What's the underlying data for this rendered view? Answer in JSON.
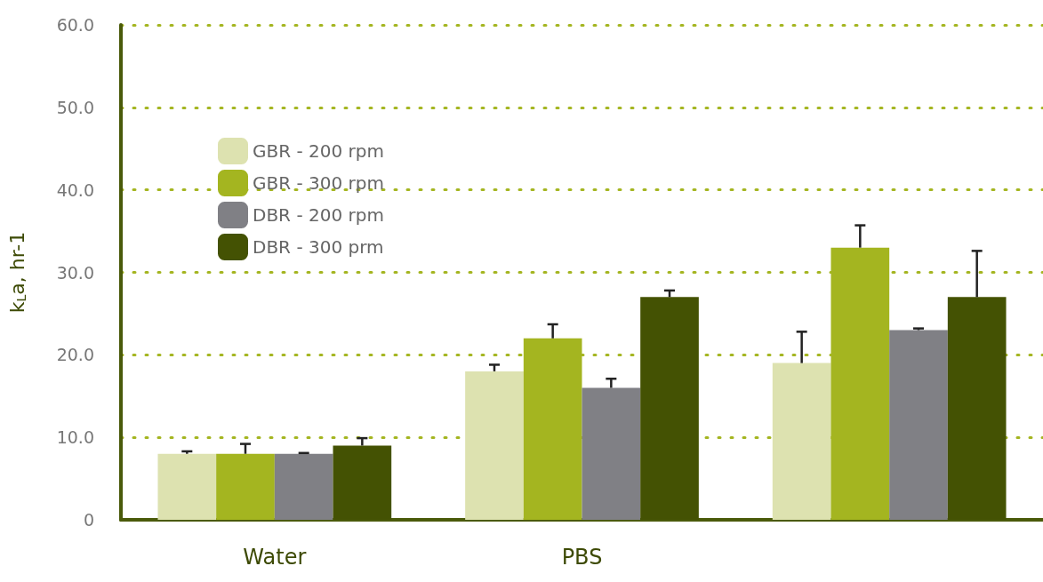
{
  "chart_data": {
    "type": "bar",
    "ylabel": "k$_{L}$a, hr-1",
    "categories": [
      "Water",
      "PBS",
      null
    ],
    "series": [
      {
        "name": "GBR - 200 rpm",
        "color": "#dde2b0",
        "values": [
          8.0,
          18.0,
          19.0
        ],
        "errors": [
          [
            8.0,
            8.3
          ],
          [
            18.0,
            18.8
          ],
          [
            19.0,
            22.8
          ]
        ]
      },
      {
        "name": "GBR - 300 rpm",
        "color": "#a4b520",
        "values": [
          8.0,
          22.0,
          33.0
        ],
        "errors": [
          [
            8.0,
            9.2
          ],
          [
            22.0,
            23.7
          ],
          [
            33.0,
            35.7
          ]
        ]
      },
      {
        "name": "DBR - 200 rpm",
        "color": "#808085",
        "values": [
          8.0,
          16.0,
          23.0
        ],
        "errors": [
          [
            8.0,
            8.1
          ],
          [
            16.0,
            17.1
          ],
          [
            23.0,
            23.2
          ]
        ]
      },
      {
        "name": "DBR - 300 prm",
        "color": "#445203",
        "values": [
          9.0,
          27.0,
          27.0
        ],
        "errors": [
          [
            9.0,
            9.9
          ],
          [
            27.0,
            27.8
          ],
          [
            27.0,
            32.6
          ]
        ]
      }
    ],
    "ylim": [
      0,
      60
    ],
    "yticks": [
      {
        "value": 0,
        "label": "0"
      },
      {
        "value": 10,
        "label": "10.0"
      },
      {
        "value": 20,
        "label": "20.0"
      },
      {
        "value": 30,
        "label": "30.0"
      },
      {
        "value": 40,
        "label": "40.0"
      },
      {
        "value": 50,
        "label": "50.0"
      },
      {
        "value": 60,
        "label": "60.0"
      }
    ],
    "grid": "y",
    "legend": "top left"
  }
}
